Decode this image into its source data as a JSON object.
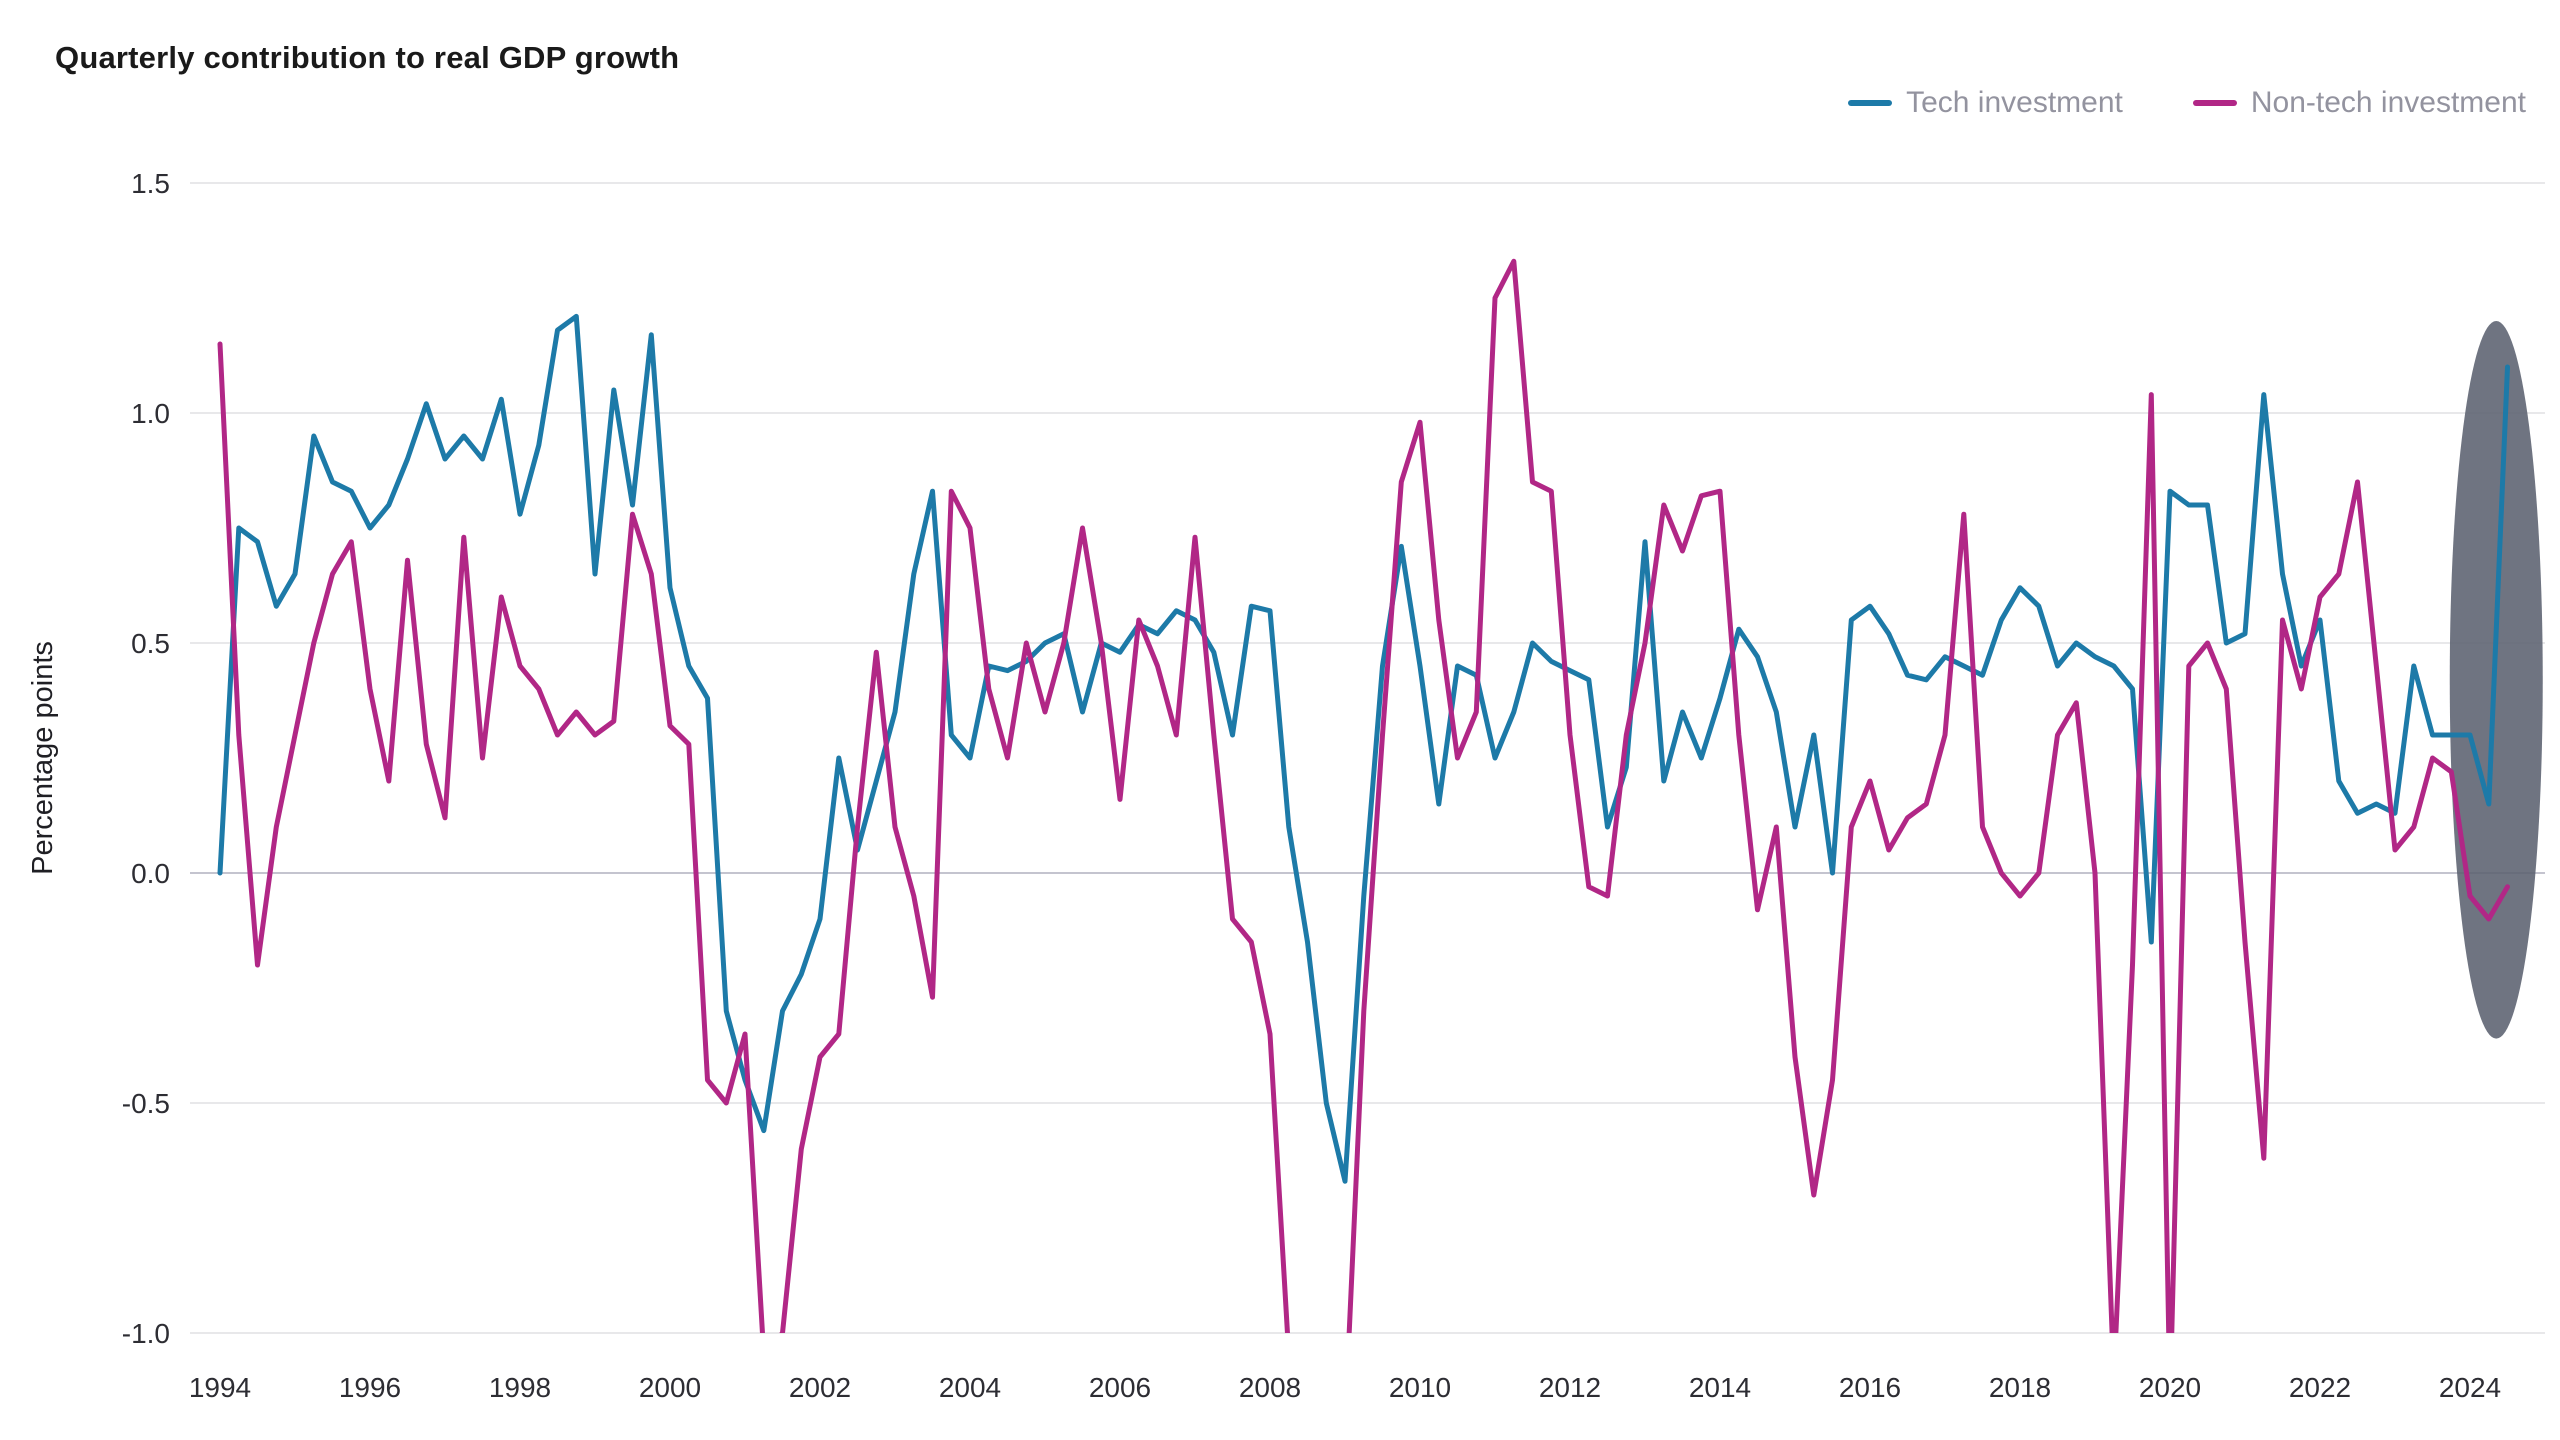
{
  "title": "Quarterly contribution to real GDP growth",
  "y_axis_label": "Percentage points",
  "legend": [
    {
      "label": "Tech investment",
      "color": "#1d7aa8"
    },
    {
      "label": "Non-tech investment",
      "color": "#b12786"
    }
  ],
  "chart_data": {
    "type": "line",
    "title": "Quarterly contribution to real GDP growth",
    "xlabel": "",
    "ylabel": "Percentage points",
    "grid": true,
    "legend_position": "top-right",
    "xlim": [
      1993.6,
      2025.0
    ],
    "ylim": [
      -1.0,
      1.5
    ],
    "x_ticks": [
      1994,
      1996,
      1998,
      2000,
      2002,
      2004,
      2006,
      2008,
      2010,
      2012,
      2014,
      2016,
      2018,
      2020,
      2022,
      2024
    ],
    "y_ticks": [
      {
        "v": 1.5,
        "label": "1.5"
      },
      {
        "v": 1.0,
        "label": "1.0"
      },
      {
        "v": 0.5,
        "label": "0.5"
      },
      {
        "v": 0.0,
        "label": "0.0"
      },
      {
        "v": -0.5,
        "label": "-0.5"
      },
      {
        "v": -1.0,
        "label": "-1.0"
      }
    ],
    "x_start": 1994.0,
    "x_step": 0.25,
    "series": [
      {
        "name": "Tech investment",
        "color": "#1d7aa8",
        "values": [
          0.0,
          0.75,
          0.72,
          0.58,
          0.65,
          0.95,
          0.85,
          0.83,
          0.75,
          0.8,
          0.9,
          1.02,
          0.9,
          0.95,
          0.9,
          1.03,
          0.78,
          0.93,
          1.18,
          1.21,
          0.65,
          1.05,
          0.8,
          1.17,
          0.62,
          0.45,
          0.38,
          -0.3,
          -0.45,
          -0.56,
          -0.3,
          -0.22,
          -0.1,
          0.25,
          0.05,
          0.2,
          0.35,
          0.65,
          0.83,
          0.3,
          0.25,
          0.45,
          0.44,
          0.46,
          0.5,
          0.52,
          0.35,
          0.5,
          0.48,
          0.54,
          0.52,
          0.57,
          0.55,
          0.48,
          0.3,
          0.58,
          0.57,
          0.1,
          -0.15,
          -0.5,
          -0.67,
          -0.05,
          0.45,
          0.71,
          0.45,
          0.15,
          0.45,
          0.43,
          0.25,
          0.35,
          0.5,
          0.46,
          0.44,
          0.42,
          0.1,
          0.23,
          0.72,
          0.2,
          0.35,
          0.25,
          0.38,
          0.53,
          0.47,
          0.35,
          0.1,
          0.3,
          0.0,
          0.55,
          0.58,
          0.52,
          0.43,
          0.42,
          0.47,
          0.45,
          0.43,
          0.55,
          0.62,
          0.58,
          0.45,
          0.5,
          0.47,
          0.45,
          0.4,
          -0.15,
          0.83,
          0.8,
          0.8,
          0.5,
          0.52,
          1.04,
          0.65,
          0.45,
          0.55,
          0.2,
          0.13,
          0.15,
          0.13,
          0.45,
          0.3,
          0.3,
          0.3,
          0.15,
          1.1
        ]
      },
      {
        "name": "Non-tech investment",
        "color": "#b12786",
        "values": [
          1.15,
          0.3,
          -0.2,
          0.1,
          0.3,
          0.5,
          0.65,
          0.72,
          0.4,
          0.2,
          0.68,
          0.28,
          0.12,
          0.73,
          0.25,
          0.6,
          0.45,
          0.4,
          0.3,
          0.35,
          0.3,
          0.33,
          0.78,
          0.65,
          0.32,
          0.28,
          -0.45,
          -0.5,
          -0.35,
          -1.05,
          -1.0,
          -0.6,
          -0.4,
          -0.35,
          0.1,
          0.48,
          0.1,
          -0.05,
          -0.27,
          0.83,
          0.75,
          0.4,
          0.25,
          0.5,
          0.35,
          0.5,
          0.75,
          0.5,
          0.16,
          0.55,
          0.45,
          0.3,
          0.73,
          0.3,
          -0.1,
          -0.15,
          -0.35,
          -1.05,
          -1.3,
          -1.2,
          -1.2,
          -0.3,
          0.3,
          0.85,
          0.98,
          0.55,
          0.25,
          0.35,
          1.25,
          1.33,
          0.85,
          0.83,
          0.3,
          -0.03,
          -0.05,
          0.3,
          0.5,
          0.8,
          0.7,
          0.82,
          0.83,
          0.3,
          -0.08,
          0.1,
          -0.4,
          -0.7,
          -0.45,
          0.1,
          0.2,
          0.05,
          0.12,
          0.15,
          0.3,
          0.78,
          0.1,
          0.0,
          -0.05,
          0.0,
          0.3,
          0.37,
          0.0,
          -1.1,
          -0.2,
          1.04,
          -1.15,
          0.45,
          0.5,
          0.4,
          -0.15,
          -0.62,
          0.55,
          0.4,
          0.6,
          0.65,
          0.85,
          0.45,
          0.05,
          0.1,
          0.25,
          0.22,
          -0.05,
          -0.1,
          -0.03
        ]
      }
    ],
    "annotation": {
      "type": "ellipse-highlight",
      "x_center": 2024.35,
      "y_center": 0.42,
      "rx_years": 0.62,
      "ry_units": 0.78,
      "color": "#5b6170",
      "opacity": 0.88
    }
  }
}
